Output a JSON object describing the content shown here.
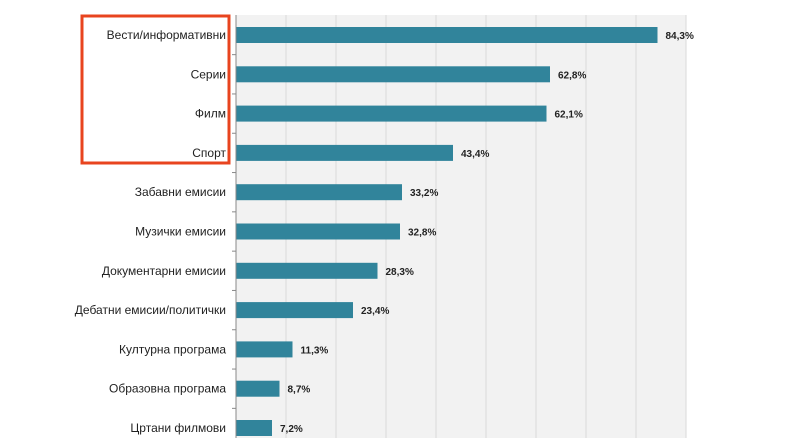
{
  "chart_data": {
    "type": "bar",
    "orientation": "horizontal",
    "title": "",
    "xlabel": "",
    "ylabel": "",
    "xlim": [
      0,
      90
    ],
    "grid": true,
    "grid_step": 10,
    "categories": [
      "Вести/информативни",
      "Серии",
      "Филм",
      "Спорт",
      "Забавни емисии",
      "Музички емисии",
      "Документарни емисии",
      "Дебатни емисии/политички",
      "Културна програма",
      "Образовна програма",
      "Цртани филмови"
    ],
    "values": [
      84.3,
      62.8,
      62.1,
      43.4,
      33.2,
      32.8,
      28.3,
      23.4,
      11.3,
      8.7,
      7.2
    ],
    "value_labels": [
      "84,3%",
      "62,8%",
      "62,1%",
      "43,4%",
      "33,2%",
      "32,8%",
      "28,3%",
      "23,4%",
      "11,3%",
      "8,7%",
      "7,2%"
    ],
    "annotations": [
      {
        "type": "highlight-box",
        "covers": [
          "Вести/информативни",
          "Серии",
          "Филм",
          "Спорт"
        ]
      }
    ],
    "colors": {
      "bar": "#31849b",
      "plot_bg": "#f2f2f2",
      "grid": "#d9d9d9",
      "highlight": "#e8441f"
    }
  }
}
